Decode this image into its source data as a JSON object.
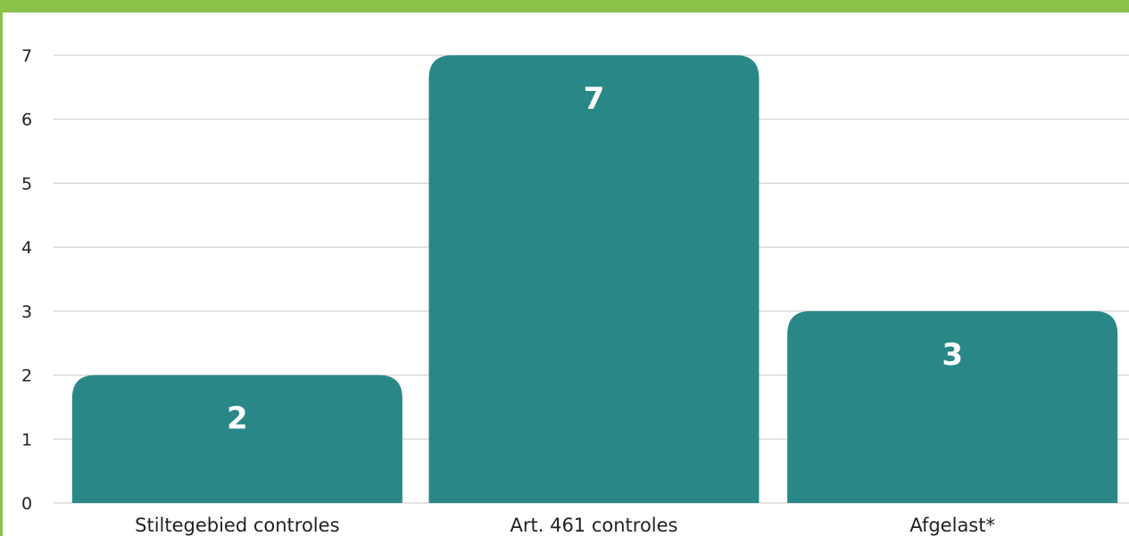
{
  "chart_data": {
    "type": "bar",
    "categories": [
      "Stiltegebied controles",
      "Art. 461 controles",
      "Afgelast*"
    ],
    "values": [
      2,
      7,
      3
    ],
    "data_labels": [
      "2",
      "7",
      "3"
    ],
    "title": "",
    "xlabel": "",
    "ylabel": "",
    "ylim": [
      0,
      7
    ],
    "yticks": [
      "0",
      "1",
      "2",
      "3",
      "4",
      "5",
      "6",
      "7"
    ],
    "grid": true,
    "legend": "none"
  },
  "colors": {
    "bar": "#2a8787",
    "frame": "#8bc24a",
    "grid": "#c8c8c8"
  }
}
